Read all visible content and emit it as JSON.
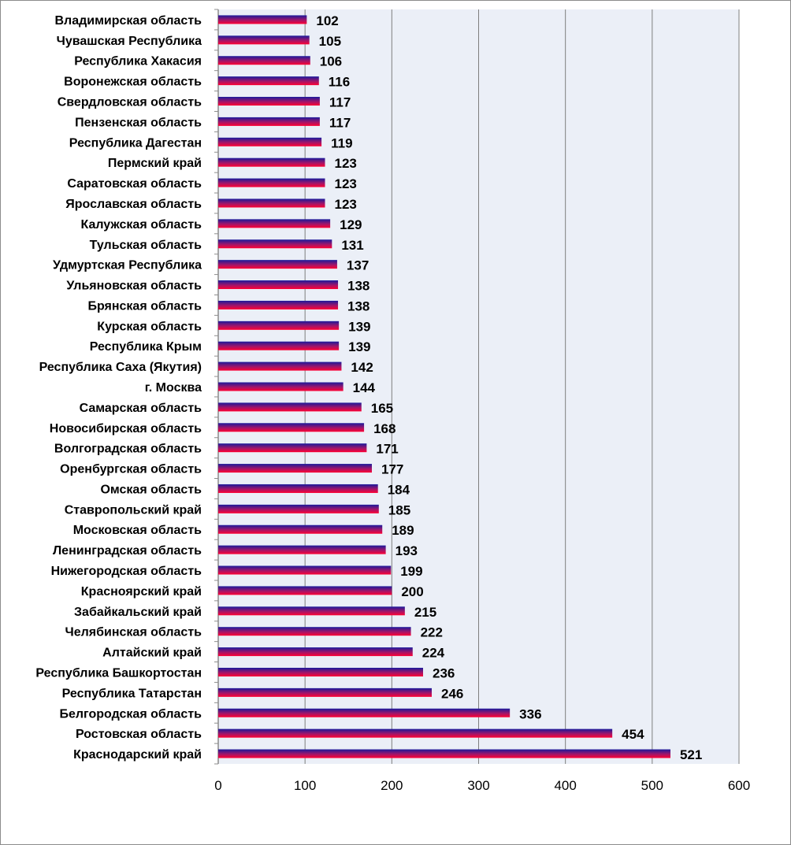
{
  "chart_data": {
    "type": "bar",
    "orientation": "horizontal",
    "categories": [
      "Владимирская область",
      "Чувашская Республика",
      "Республика Хакасия",
      "Воронежская область",
      "Свердловская область",
      "Пензенская область",
      "Республика Дагестан",
      "Пермский край",
      "Саратовская область",
      "Ярославская область",
      "Калужская область",
      "Тульская область",
      "Удмуртская Республика",
      "Ульяновская область",
      "Брянская область",
      "Курская область",
      "Республика Крым",
      "Республика Саха (Якутия)",
      "г. Москва",
      "Самарская область",
      "Новосибирская область",
      "Волгоградская область",
      "Оренбургская область",
      "Омская область",
      "Ставропольский край",
      "Московская область",
      "Ленинградская область",
      "Нижегородская область",
      "Красноярский край",
      "Забайкальский край",
      "Челябинская область",
      "Алтайский край",
      "Республика Башкортостан",
      "Республика Татарстан",
      "Белгородская область",
      "Ростовская область",
      "Краснодарский край"
    ],
    "values": [
      102,
      105,
      106,
      116,
      117,
      117,
      119,
      123,
      123,
      123,
      129,
      131,
      137,
      138,
      138,
      139,
      139,
      142,
      144,
      165,
      168,
      171,
      177,
      184,
      185,
      189,
      193,
      199,
      200,
      215,
      222,
      224,
      236,
      246,
      336,
      454,
      521
    ],
    "xlim": [
      0,
      600
    ],
    "xticks": [
      "0",
      "100",
      "200",
      "300",
      "400",
      "500",
      "600"
    ],
    "grid": true,
    "data_labels": true,
    "colors": {
      "bar_top": "#1a1a9c",
      "bar_bottom": "#ff0033",
      "plot_bg": "#ebeff7",
      "grid": "#7f7f7f"
    }
  }
}
